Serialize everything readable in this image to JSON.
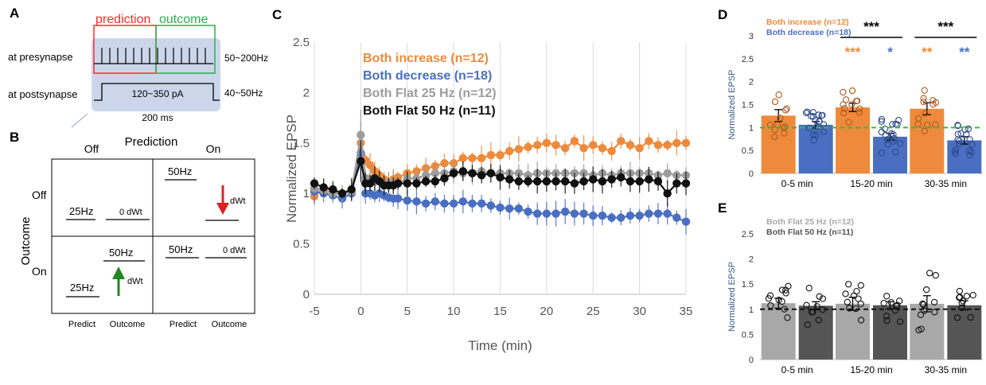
{
  "panel_letters": {
    "a": "A",
    "b": "B",
    "c": "C",
    "d": "D",
    "e": "E"
  },
  "panel_a": {
    "prediction": "prediction",
    "outcome": "outcome",
    "pre": "at presynapse",
    "post": "at postsynapse",
    "pre_freq": "50~200Hz",
    "post_freq": "40~50Hz",
    "current": "120~350 pA",
    "duration": "200 ms",
    "colors": {
      "prediction": "#ff2a2a",
      "outcome": "#2ab04a",
      "shade": "#ccd6ea"
    }
  },
  "panel_b": {
    "off_col": "Off",
    "on_col": "On",
    "prediction": "Prediction",
    "outcome": "Outcome",
    "off_row": "Off",
    "on_row": "On",
    "q1_left": "25Hz",
    "q1_right": "0 dWt",
    "q2_top": "50Hz",
    "q2_dwt": "dWt",
    "q3_top": "50Hz",
    "q3_bottom": "25Hz",
    "q3_dwt": "dWt",
    "q4_left": "50Hz",
    "q4_right": "0 dWt",
    "predict1": "Predict",
    "outcome1": "Outcome",
    "predict2": "Predict",
    "outcome2": "Outcome"
  },
  "chart_data": [
    {
      "type": "line",
      "panel": "C",
      "xlabel": "Time (min)",
      "ylabel": "Normalized EPSP",
      "xlim": [
        -5,
        35
      ],
      "ylim": [
        0,
        2.5
      ],
      "xticks": [
        "-5",
        "0",
        "5",
        "10",
        "15",
        "20",
        "25",
        "30",
        "35"
      ],
      "yticks": [
        "0",
        "0.5",
        "1",
        "1.5",
        "2",
        "2.5"
      ],
      "grid": "vertical",
      "legend": "top-left",
      "x": [
        -5,
        -4,
        -3,
        -2,
        -1,
        0,
        0.5,
        1,
        1.5,
        2,
        2.5,
        3,
        3.5,
        4,
        5,
        6,
        7,
        8,
        9,
        10,
        11,
        12,
        13,
        14,
        15,
        16,
        17,
        18,
        19,
        20,
        21,
        22,
        23,
        24,
        25,
        26,
        27,
        28,
        29,
        30,
        31,
        32,
        33,
        34,
        35
      ],
      "series": [
        {
          "name": "Both increase (n=12)",
          "color": "#ef8a3c",
          "values": [
            0.97,
            1.05,
            1.03,
            1.0,
            1.02,
            1.5,
            1.33,
            1.28,
            1.22,
            1.18,
            1.14,
            1.1,
            1.14,
            1.16,
            1.2,
            1.22,
            1.25,
            1.27,
            1.3,
            1.3,
            1.35,
            1.35,
            1.35,
            1.38,
            1.38,
            1.42,
            1.44,
            1.46,
            1.48,
            1.5,
            1.48,
            1.45,
            1.52,
            1.45,
            1.48,
            1.45,
            1.42,
            1.52,
            1.48,
            1.45,
            1.52,
            1.48,
            1.48,
            1.5,
            1.5
          ]
        },
        {
          "name": "Both decrease (n=18)",
          "color": "#4a6fc2",
          "values": [
            1.02,
            1.0,
            0.98,
            0.95,
            1.0,
            1.4,
            1.0,
            1.0,
            0.98,
            1.0,
            0.98,
            0.96,
            0.95,
            0.95,
            0.93,
            0.92,
            0.9,
            0.92,
            0.9,
            0.9,
            0.92,
            0.9,
            0.9,
            0.88,
            0.86,
            0.85,
            0.85,
            0.82,
            0.8,
            0.8,
            0.8,
            0.82,
            0.8,
            0.8,
            0.78,
            0.78,
            0.76,
            0.76,
            0.78,
            0.78,
            0.8,
            0.8,
            0.8,
            0.76,
            0.72
          ]
        },
        {
          "name": "Both Flat 25 Hz (n=12)",
          "color": "#9c9c9c",
          "values": [
            1.05,
            1.03,
            1.0,
            1.0,
            1.02,
            1.58,
            1.15,
            1.15,
            1.12,
            1.12,
            1.1,
            1.1,
            1.1,
            1.1,
            1.15,
            1.15,
            1.18,
            1.2,
            1.2,
            1.22,
            1.2,
            1.2,
            1.22,
            1.2,
            1.2,
            1.2,
            1.2,
            1.18,
            1.2,
            1.2,
            1.2,
            1.2,
            1.2,
            1.2,
            1.18,
            1.2,
            1.18,
            1.2,
            1.2,
            1.2,
            1.2,
            1.18,
            1.2,
            1.18,
            1.18
          ]
        },
        {
          "name": "Both Flat 50 Hz (n=11)",
          "color": "#111111",
          "values": [
            1.1,
            1.06,
            1.04,
            1.0,
            1.04,
            1.32,
            1.1,
            1.1,
            1.15,
            1.12,
            1.08,
            1.08,
            1.08,
            1.1,
            1.1,
            1.1,
            1.12,
            1.12,
            1.15,
            1.2,
            1.22,
            1.2,
            1.18,
            1.2,
            1.16,
            1.14,
            1.12,
            1.12,
            1.12,
            1.12,
            1.12,
            1.12,
            1.1,
            1.12,
            1.14,
            1.12,
            1.14,
            1.16,
            1.12,
            1.12,
            1.14,
            1.12,
            1.0,
            1.1,
            1.1
          ]
        }
      ]
    },
    {
      "type": "bar",
      "panel": "D",
      "ylabel": "Normalized EPSP",
      "ylim": [
        0,
        3
      ],
      "yticks": [
        "0",
        "0.5",
        "1",
        "1.5",
        "2",
        "2.5",
        "3"
      ],
      "categories": [
        "0-5 min",
        "15-20 min",
        "30-35 min"
      ],
      "legend": "top-left",
      "reference_line": 1,
      "significance_between": [
        "",
        "***",
        "***"
      ],
      "series": [
        {
          "name": "Both increase (n=12)",
          "color": "#ef8a3c",
          "values": [
            1.26,
            1.44,
            1.41
          ],
          "sem": [
            0.13,
            0.09,
            0.13
          ],
          "stars": [
            "",
            "***",
            "**"
          ]
        },
        {
          "name": "Both decrease (n=18)",
          "color": "#4a6fc2",
          "values": [
            1.06,
            0.8,
            0.72
          ],
          "sem": [
            0.07,
            0.07,
            0.08
          ],
          "stars": [
            "",
            "*",
            "**"
          ]
        }
      ]
    },
    {
      "type": "bar",
      "panel": "E",
      "ylabel": "Normalized EPSP",
      "ylim": [
        0,
        2.5
      ],
      "yticks": [
        "0",
        "0.5",
        "1",
        "1.5",
        "2",
        "2.5"
      ],
      "categories": [
        "0-5 min",
        "15-20 min",
        "30-35 min"
      ],
      "legend": "top-left",
      "reference_line": 1,
      "series": [
        {
          "name": "Both Flat 25 Hz (n=12)",
          "color": "#a8a8a8",
          "values": [
            1.12,
            1.11,
            1.11
          ],
          "sem": [
            0.1,
            0.13,
            0.16
          ]
        },
        {
          "name": "Both Flat 50 Hz (n=11)",
          "color": "#555555",
          "values": [
            1.07,
            1.08,
            1.08
          ],
          "sem": [
            0.08,
            0.07,
            0.09
          ]
        }
      ]
    }
  ]
}
